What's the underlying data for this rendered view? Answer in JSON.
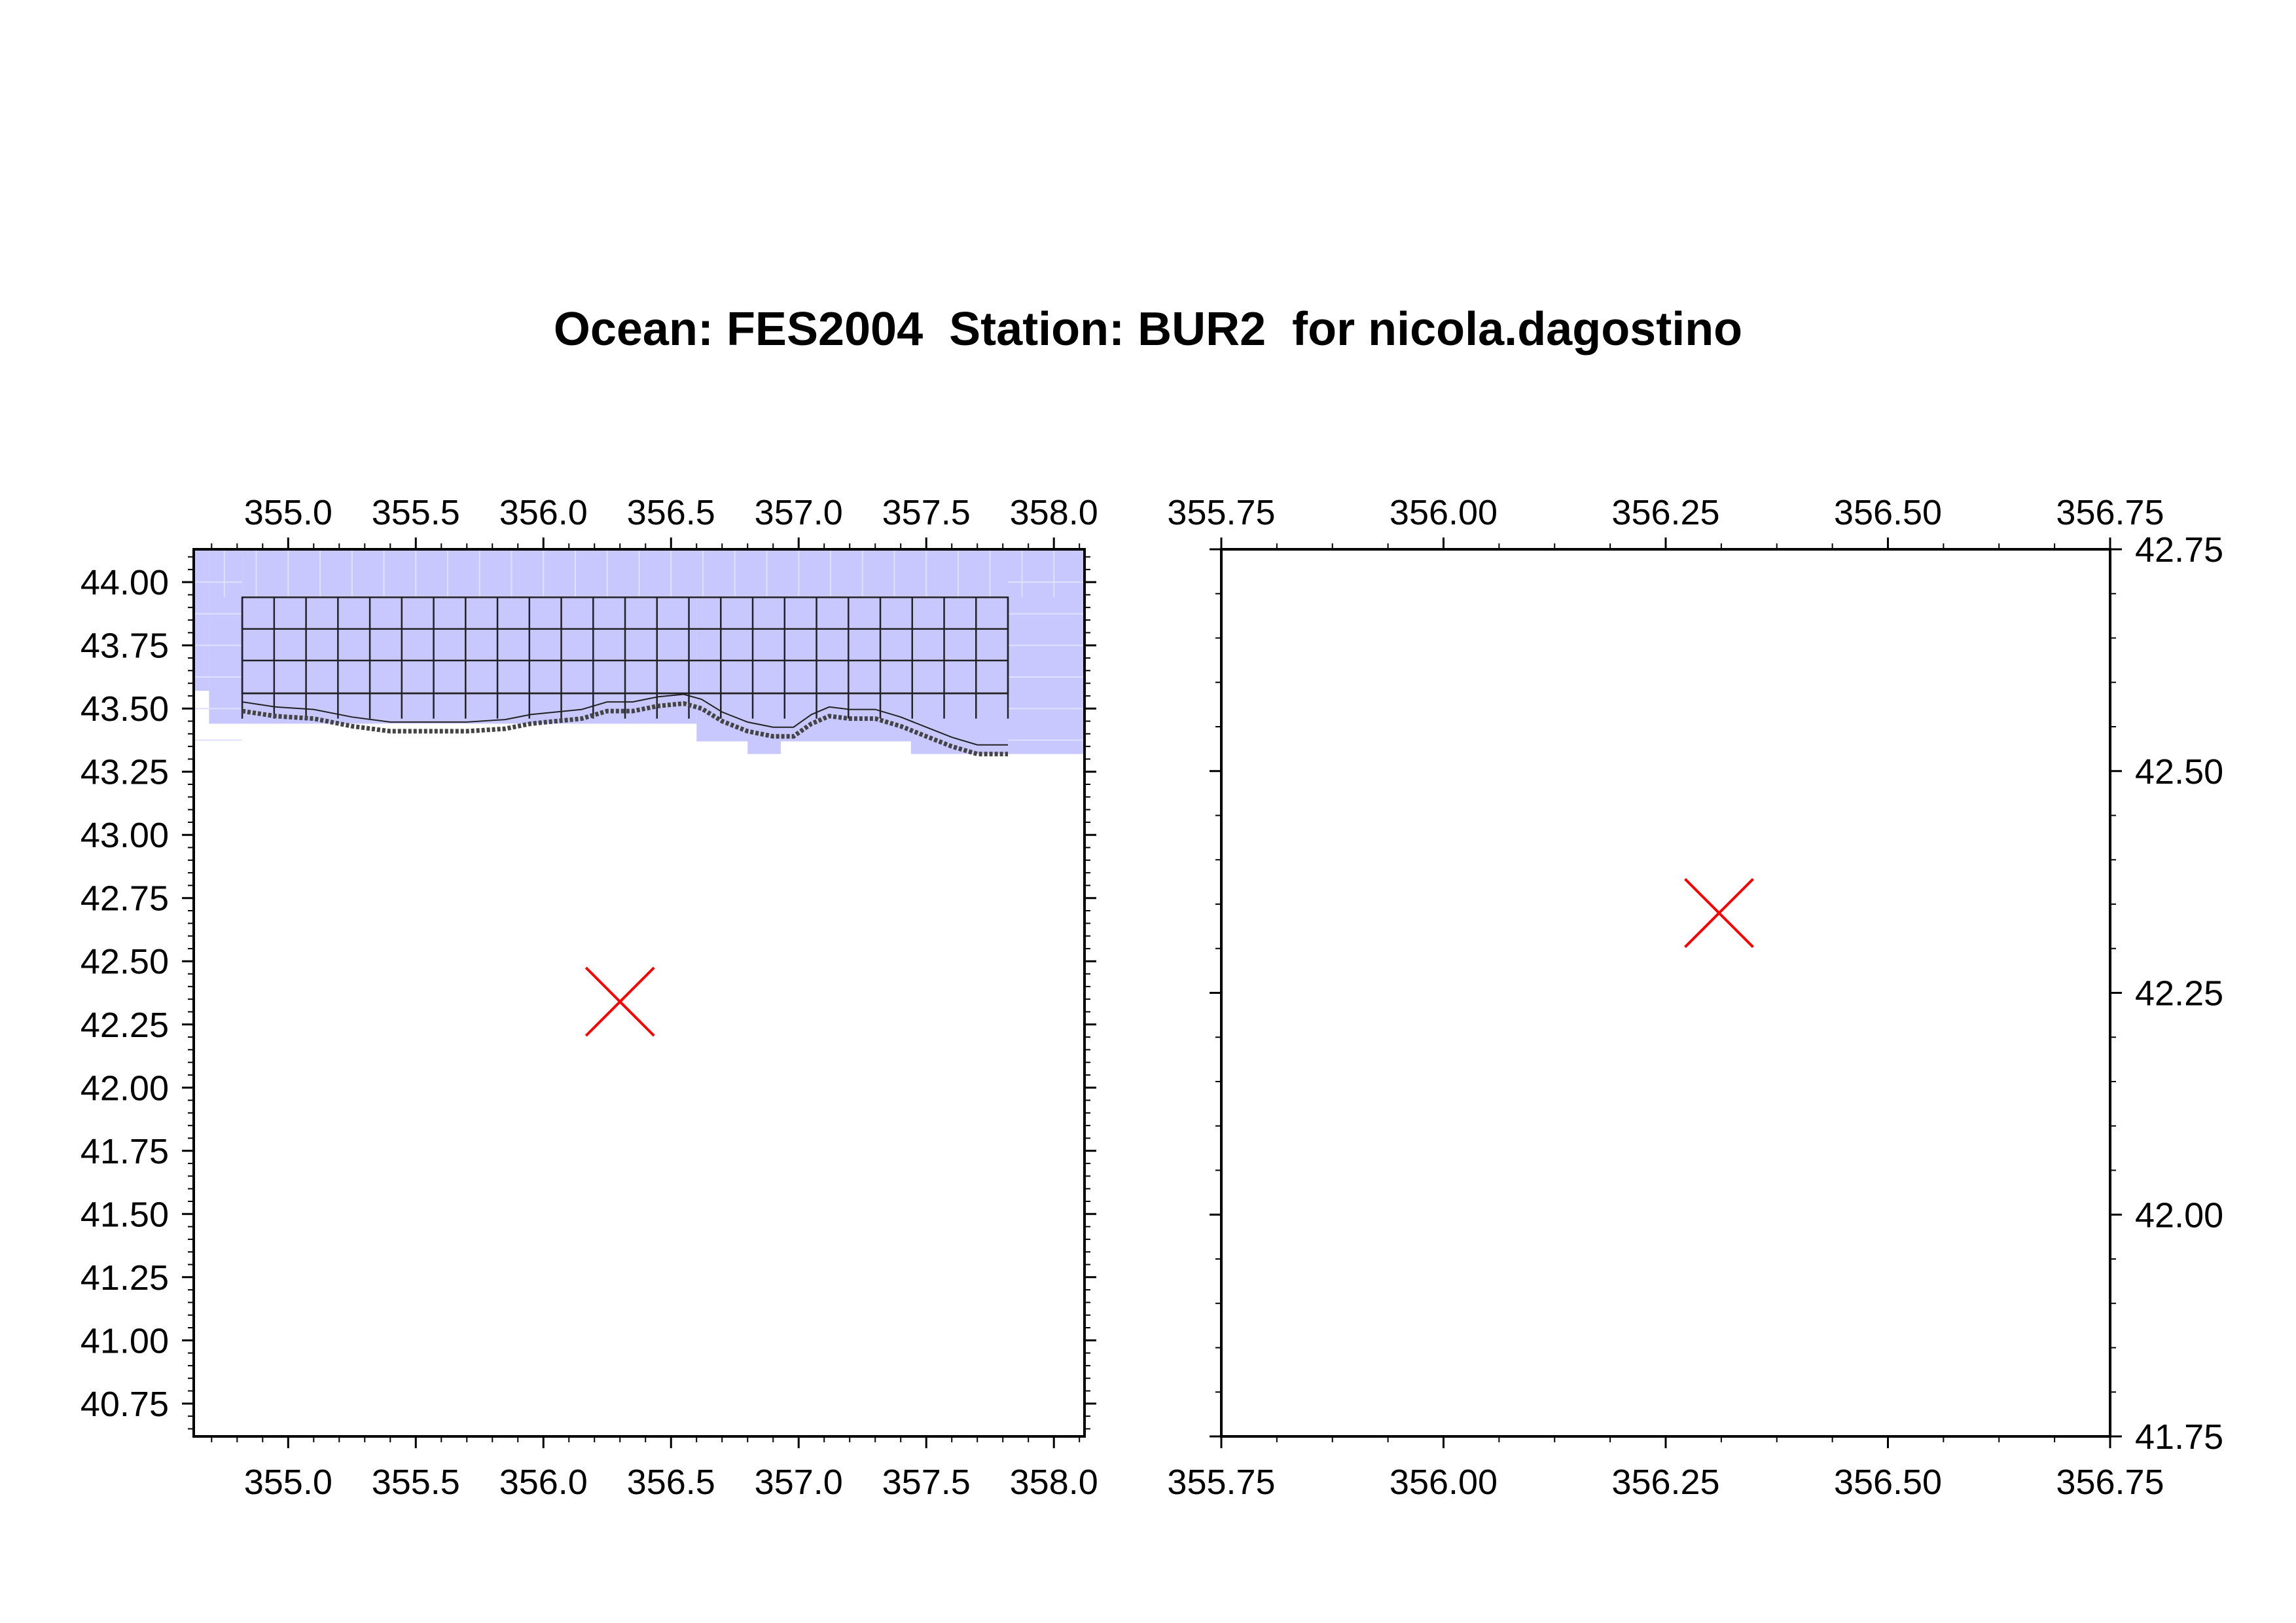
{
  "title": "Ocean: FES2004  Station: BUR2  for nicola.dagostino",
  "colors": {
    "ocean_cell_fill": "#c8c8ff",
    "cell_outline": "#222222",
    "coast": "#444444",
    "station_marker": "#ff0000",
    "frame": "#000000"
  },
  "maps": [
    {
      "name": "overview",
      "lon_range": [
        354.63,
        358.12
      ],
      "lat_range": [
        40.62,
        44.13
      ],
      "lon_ticks": [
        "355.0",
        "355.5",
        "356.0",
        "356.5",
        "357.0",
        "357.5",
        "358.0"
      ],
      "lat_ticks": [
        "44.00",
        "43.75",
        "43.50",
        "43.25",
        "43.00",
        "42.75",
        "42.50",
        "42.25",
        "42.00",
        "41.75",
        "41.50",
        "41.25",
        "41.00",
        "40.75"
      ],
      "lat_labels_side": "left",
      "station": {
        "lon": 356.3,
        "lat": 42.34
      }
    },
    {
      "name": "zoom",
      "lon_range": [
        355.75,
        356.75
      ],
      "lat_range": [
        41.75,
        42.75
      ],
      "lon_ticks": [
        "355.75",
        "356.00",
        "356.25",
        "356.50",
        "356.75"
      ],
      "lat_ticks": [
        "42.75",
        "42.50",
        "42.25",
        "42.00",
        "41.75"
      ],
      "lat_labels_side": "right",
      "station": {
        "lon": 356.31,
        "lat": 42.34
      }
    }
  ]
}
